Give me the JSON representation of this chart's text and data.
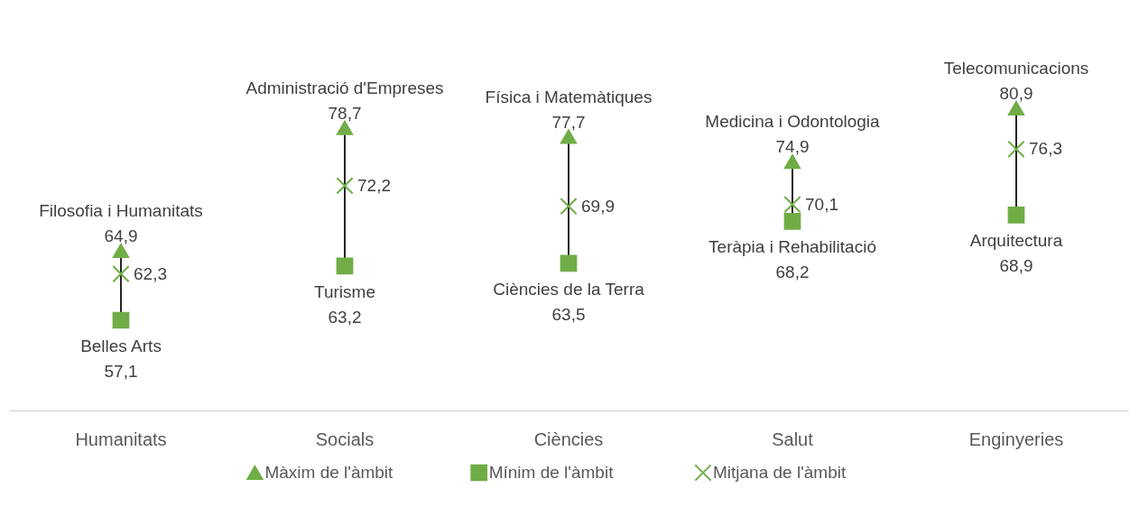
{
  "chart_data": {
    "type": "scatter",
    "categories": [
      "Humanitats",
      "Socials",
      "Ciències",
      "Salut",
      "Enginyeries"
    ],
    "tick_labels": "x",
    "grid": false,
    "legend": "bottom",
    "series": [
      {
        "name": "Màxim de l'àmbit",
        "type": "scatter",
        "color": "#70ad47",
        "marker": "triangle",
        "values": [
          64.9,
          78.7,
          77.7,
          74.9,
          80.9
        ],
        "value_labels": [
          "Filosofia i Humanitats\n64,9",
          "Administració d'Empreses\n78,7",
          "Física i Matemàtiques\n77,7",
          "Medicina i Odontologia\n74,9",
          "Telecomunicacions\n80,9"
        ]
      },
      {
        "name": "Mínim de l'àmbit",
        "type": "scatter",
        "color": "#70ad47",
        "marker": "square",
        "values": [
          57.1,
          63.2,
          63.5,
          68.2,
          68.9
        ],
        "value_labels": [
          "Belles Arts\n57,1",
          "Turisme\n63,2",
          "Ciències de la Terra\n63,5",
          "Teràpia i Rehabilitació\n68,2",
          "Arquitectura\n68,9"
        ]
      },
      {
        "name": "Mitjana de l'àmbit",
        "type": "scatter",
        "color": "#70ad47",
        "marker": "cross",
        "values": [
          62.3,
          72.2,
          69.9,
          70.1,
          76.3
        ],
        "value_labels": [
          "62,3",
          "72,2",
          "69,9",
          "70,1",
          "76,3"
        ]
      }
    ]
  }
}
